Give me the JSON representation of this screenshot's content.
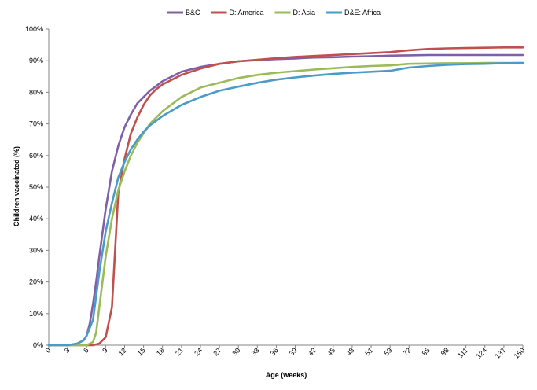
{
  "chart_data": {
    "type": "line",
    "xlabel": "Age (weeks)",
    "ylabel": "Children vaccinated (%)",
    "ylim": [
      0,
      100
    ],
    "yticks": [
      "0%",
      "10%",
      "20%",
      "30%",
      "40%",
      "50%",
      "60%",
      "70%",
      "80%",
      "90%",
      "100%"
    ],
    "xticks": [
      "0",
      "3",
      "6",
      "9",
      "12",
      "15",
      "18",
      "21",
      "24",
      "27",
      "30",
      "33",
      "36",
      "39",
      "42",
      "45",
      "48",
      "51",
      "59",
      "72",
      "85",
      "98",
      "111",
      "124",
      "137",
      "150"
    ],
    "grid": "none",
    "legend_position": "top",
    "series": [
      {
        "name": "B&C",
        "color": "#7f60a8",
        "x": [
          0,
          3,
          4.5,
          5.5,
          6,
          6.5,
          7,
          7.5,
          8,
          9,
          10,
          11,
          12,
          13,
          14,
          15,
          16,
          17,
          18,
          21,
          24,
          27,
          30,
          33,
          36,
          39,
          42,
          45,
          48,
          51,
          59,
          72,
          85,
          98,
          111,
          124,
          137,
          150
        ],
        "y": [
          0,
          0,
          0.5,
          1.5,
          3,
          7,
          13,
          20,
          28,
          43,
          55,
          63,
          69,
          73,
          76.5,
          78.5,
          80.5,
          82,
          83.5,
          86.5,
          88,
          89,
          89.8,
          90.2,
          90.5,
          90.7,
          91,
          91.1,
          91.3,
          91.4,
          91.6,
          91.7,
          91.8,
          91.8,
          91.8,
          91.8,
          91.8,
          91.8
        ]
      },
      {
        "name": "D: America",
        "color": "#c0504d",
        "x": [
          0,
          3,
          6,
          7,
          8,
          9,
          10,
          11,
          12,
          13,
          14,
          15,
          16,
          17,
          18,
          21,
          24,
          27,
          30,
          33,
          36,
          39,
          42,
          45,
          48,
          51,
          59,
          72,
          85,
          98,
          111,
          124,
          137,
          150
        ],
        "y": [
          0,
          0,
          0,
          0,
          0.5,
          2.5,
          12,
          48,
          59,
          67,
          72,
          76,
          79,
          81,
          82.5,
          85.5,
          87.5,
          89,
          89.8,
          90.3,
          90.8,
          91.2,
          91.5,
          91.8,
          92.1,
          92.4,
          92.7,
          93.3,
          93.7,
          93.9,
          94,
          94.1,
          94.2,
          94.2
        ]
      },
      {
        "name": "D: Asia",
        "color": "#9bbb59",
        "x": [
          0,
          3,
          6,
          7,
          7.5,
          8,
          9,
          10,
          11,
          12,
          13,
          14,
          15,
          16,
          17,
          18,
          21,
          24,
          27,
          30,
          33,
          36,
          39,
          42,
          45,
          48,
          51,
          59,
          72,
          85,
          98,
          111,
          124,
          137,
          150
        ],
        "y": [
          0,
          0,
          0,
          1,
          4,
          12,
          28,
          40,
          49,
          55,
          60,
          64,
          67,
          70,
          72,
          74,
          78.5,
          81.5,
          83,
          84.5,
          85.5,
          86.2,
          86.7,
          87.2,
          87.6,
          88,
          88.3,
          88.5,
          89,
          89.1,
          89.2,
          89.2,
          89.3,
          89.3,
          89.3
        ]
      },
      {
        "name": "D&E: Africa",
        "color": "#4a9bc7",
        "x": [
          0,
          3,
          4.5,
          5.5,
          6,
          7,
          8,
          9,
          10,
          11,
          12,
          13,
          14,
          15,
          16,
          17,
          18,
          21,
          24,
          27,
          30,
          33,
          36,
          39,
          42,
          45,
          48,
          51,
          59,
          72,
          85,
          98,
          111,
          124,
          137,
          150
        ],
        "y": [
          0,
          0,
          0.5,
          1.5,
          3,
          8,
          23,
          36,
          45,
          53,
          58,
          62,
          65,
          67.5,
          69.5,
          71,
          72.5,
          76,
          78.5,
          80.5,
          81.8,
          83,
          84,
          84.7,
          85.3,
          85.8,
          86.2,
          86.5,
          86.8,
          87.8,
          88.3,
          88.7,
          88.9,
          89,
          89.2,
          89.3
        ]
      }
    ]
  }
}
